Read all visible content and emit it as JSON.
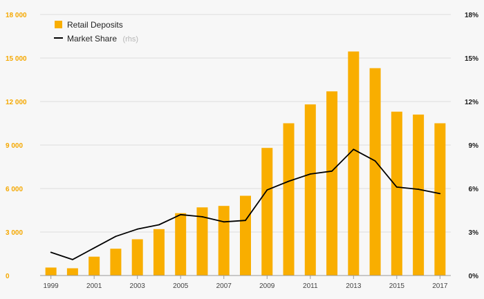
{
  "chart_data": {
    "type": "bar",
    "categories": [
      "1999",
      "2000",
      "2001",
      "2002",
      "2003",
      "2004",
      "2005",
      "2006",
      "2007",
      "2008",
      "2009",
      "2010",
      "2011",
      "2012",
      "2013",
      "2014",
      "2015",
      "2016",
      "2017"
    ],
    "x_tick_labels": [
      "1999",
      "2001",
      "2003",
      "2005",
      "2007",
      "2009",
      "2011",
      "2013",
      "2015",
      "2017"
    ],
    "series": [
      {
        "name": "Retail Deposits",
        "type": "bar",
        "axis": "left",
        "color": "#f9ae00",
        "values": [
          550,
          500,
          1300,
          1850,
          2500,
          3200,
          4300,
          4700,
          4800,
          5500,
          8800,
          10500,
          11800,
          12700,
          15450,
          14300,
          11300,
          11100,
          10500
        ]
      },
      {
        "name": "Market Share",
        "type": "line",
        "axis": "right",
        "color": "#000000",
        "values": [
          1.6,
          1.1,
          1.9,
          2.7,
          3.2,
          3.5,
          4.2,
          4.05,
          3.7,
          3.8,
          5.9,
          6.5,
          7.0,
          7.2,
          8.7,
          7.9,
          6.1,
          5.95,
          5.65
        ]
      }
    ],
    "legend": {
      "items": [
        {
          "label": "Retail Deposits",
          "suffix": ""
        },
        {
          "label": "Market Share",
          "suffix": "(rhs)"
        }
      ],
      "position": "top-left"
    },
    "y_left": {
      "ylim": [
        0,
        18000
      ],
      "ticks": [
        0,
        3000,
        6000,
        9000,
        12000,
        15000,
        18000
      ],
      "tick_labels": [
        "0",
        "3 000",
        "6 000",
        "9 000",
        "12 000",
        "15 000",
        "18 000"
      ],
      "color": "#f5a800"
    },
    "y_right": {
      "ylim": [
        0,
        18
      ],
      "ticks": [
        0,
        3,
        6,
        9,
        12,
        15,
        18
      ],
      "tick_labels": [
        "0%",
        "3%",
        "6%",
        "9%",
        "12%",
        "15%",
        "18%"
      ]
    },
    "grid": true,
    "title": "",
    "xlabel": "",
    "ylabel": ""
  }
}
